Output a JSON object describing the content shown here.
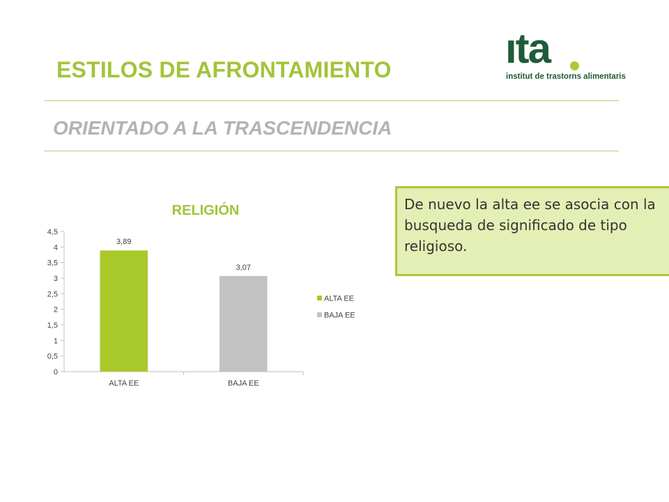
{
  "slide": {
    "title": "ESTILOS DE AFRONTAMIENTO",
    "subtitle": "ORIENTADO A LA TRASCENDENCIA",
    "note": "De nuevo la alta ee se asocia con la busqueda de significado de tipo religioso."
  },
  "logo": {
    "word": "ıta",
    "tagline": "institut de trastorns alimentaris",
    "color": "#1e5c38",
    "dot_color": "#a9c93a"
  },
  "colors": {
    "accent": "#a2c43a",
    "alta": "#a9c92b",
    "baja": "#c1c2c1"
  },
  "chart_data": {
    "type": "bar",
    "title": "RELIGIÓN",
    "categories": [
      "ALTA EE",
      "BAJA EE"
    ],
    "values": [
      3.89,
      3.07
    ],
    "data_labels": [
      "3,89",
      "3,07"
    ],
    "bar_colors": [
      "#a9c92b",
      "#c1c2c1"
    ],
    "legend": [
      "ALTA EE",
      "BAJA EE"
    ],
    "legend_position": "right",
    "ylim": [
      0,
      4.5
    ],
    "yticks": [
      0,
      0.5,
      1,
      1.5,
      2,
      2.5,
      3,
      3.5,
      4,
      4.5
    ],
    "ytick_labels": [
      "0",
      "0,5",
      "1",
      "1,5",
      "2",
      "2,5",
      "3",
      "3,5",
      "4",
      "4,5"
    ],
    "grid": false
  }
}
